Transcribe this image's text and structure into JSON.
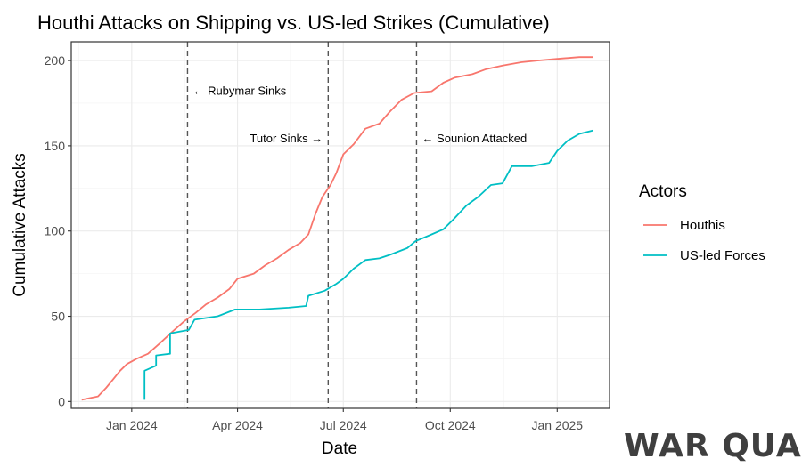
{
  "chart_data": {
    "type": "line",
    "title": "Houthi Attacks on Shipping vs. US-led Strikes (Cumulative)",
    "xlabel": "Date",
    "ylabel": "Cumulative Attacks",
    "x_ticks": [
      "Jan 2024",
      "Apr 2024",
      "Jul 2024",
      "Oct 2024",
      "Jan 2025"
    ],
    "y_ticks": [
      "0",
      "50",
      "100",
      "150",
      "200"
    ],
    "xlim": [
      "2023-11-10",
      "2025-02-15"
    ],
    "ylim": [
      -4,
      211
    ],
    "grid": true,
    "legend": {
      "title": "Actors",
      "position": "right"
    },
    "series": [
      {
        "name": "Houthis",
        "color": "#F8766D",
        "points": [
          [
            "2023-11-19",
            1
          ],
          [
            "2023-12-03",
            3
          ],
          [
            "2023-12-10",
            8
          ],
          [
            "2023-12-16",
            13
          ],
          [
            "2023-12-22",
            18
          ],
          [
            "2023-12-28",
            22
          ],
          [
            "2024-01-05",
            25
          ],
          [
            "2024-01-15",
            28
          ],
          [
            "2024-01-25",
            34
          ],
          [
            "2024-02-05",
            41
          ],
          [
            "2024-02-15",
            47
          ],
          [
            "2024-02-25",
            52
          ],
          [
            "2024-03-05",
            57
          ],
          [
            "2024-03-15",
            61
          ],
          [
            "2024-03-25",
            66
          ],
          [
            "2024-04-01",
            72
          ],
          [
            "2024-04-15",
            75
          ],
          [
            "2024-04-25",
            80
          ],
          [
            "2024-05-05",
            84
          ],
          [
            "2024-05-15",
            89
          ],
          [
            "2024-05-25",
            93
          ],
          [
            "2024-06-01",
            98
          ],
          [
            "2024-06-07",
            110
          ],
          [
            "2024-06-13",
            120
          ],
          [
            "2024-06-20",
            127
          ],
          [
            "2024-06-25",
            134
          ],
          [
            "2024-07-01",
            145
          ],
          [
            "2024-07-10",
            151
          ],
          [
            "2024-07-20",
            160
          ],
          [
            "2024-08-01",
            163
          ],
          [
            "2024-08-10",
            170
          ],
          [
            "2024-08-20",
            177
          ],
          [
            "2024-08-31",
            181
          ],
          [
            "2024-09-15",
            182
          ],
          [
            "2024-09-25",
            187
          ],
          [
            "2024-10-05",
            190
          ],
          [
            "2024-10-20",
            192
          ],
          [
            "2024-11-01",
            195
          ],
          [
            "2024-11-15",
            197
          ],
          [
            "2024-12-01",
            199
          ],
          [
            "2024-12-15",
            200
          ],
          [
            "2025-01-01",
            201
          ],
          [
            "2025-01-20",
            202
          ],
          [
            "2025-02-01",
            202
          ]
        ]
      },
      {
        "name": "US-led Forces",
        "color": "#00BFC4",
        "points": [
          [
            "2024-01-12",
            1
          ],
          [
            "2024-01-12",
            18
          ],
          [
            "2024-01-22",
            21
          ],
          [
            "2024-01-22",
            27
          ],
          [
            "2024-02-03",
            28
          ],
          [
            "2024-02-03",
            40
          ],
          [
            "2024-02-19",
            42
          ],
          [
            "2024-02-24",
            48
          ],
          [
            "2024-03-15",
            50
          ],
          [
            "2024-03-30",
            54
          ],
          [
            "2024-04-20",
            54
          ],
          [
            "2024-05-15",
            55
          ],
          [
            "2024-05-30",
            56
          ],
          [
            "2024-06-01",
            62
          ],
          [
            "2024-06-15",
            65
          ],
          [
            "2024-06-25",
            69
          ],
          [
            "2024-07-01",
            72
          ],
          [
            "2024-07-10",
            78
          ],
          [
            "2024-07-20",
            83
          ],
          [
            "2024-08-01",
            84
          ],
          [
            "2024-08-10",
            86
          ],
          [
            "2024-08-25",
            90
          ],
          [
            "2024-09-01",
            94
          ],
          [
            "2024-09-15",
            98
          ],
          [
            "2024-09-25",
            101
          ],
          [
            "2024-10-04",
            107
          ],
          [
            "2024-10-15",
            115
          ],
          [
            "2024-10-25",
            120
          ],
          [
            "2024-11-05",
            127
          ],
          [
            "2024-11-15",
            128
          ],
          [
            "2024-11-23",
            138
          ],
          [
            "2024-12-10",
            138
          ],
          [
            "2024-12-25",
            140
          ],
          [
            "2025-01-01",
            147
          ],
          [
            "2025-01-10",
            153
          ],
          [
            "2025-01-20",
            157
          ],
          [
            "2025-02-01",
            159
          ]
        ]
      }
    ],
    "annotations": [
      {
        "date": "2024-02-18",
        "label": "← Rubymar Sinks",
        "side": "right",
        "y": 182
      },
      {
        "date": "2024-06-18",
        "label": "Tutor Sinks →",
        "side": "left",
        "y": 154
      },
      {
        "date": "2024-09-02",
        "label": "← Sounion Attacked",
        "side": "right",
        "y": 154
      }
    ]
  },
  "watermark": "WAR QUANTS"
}
